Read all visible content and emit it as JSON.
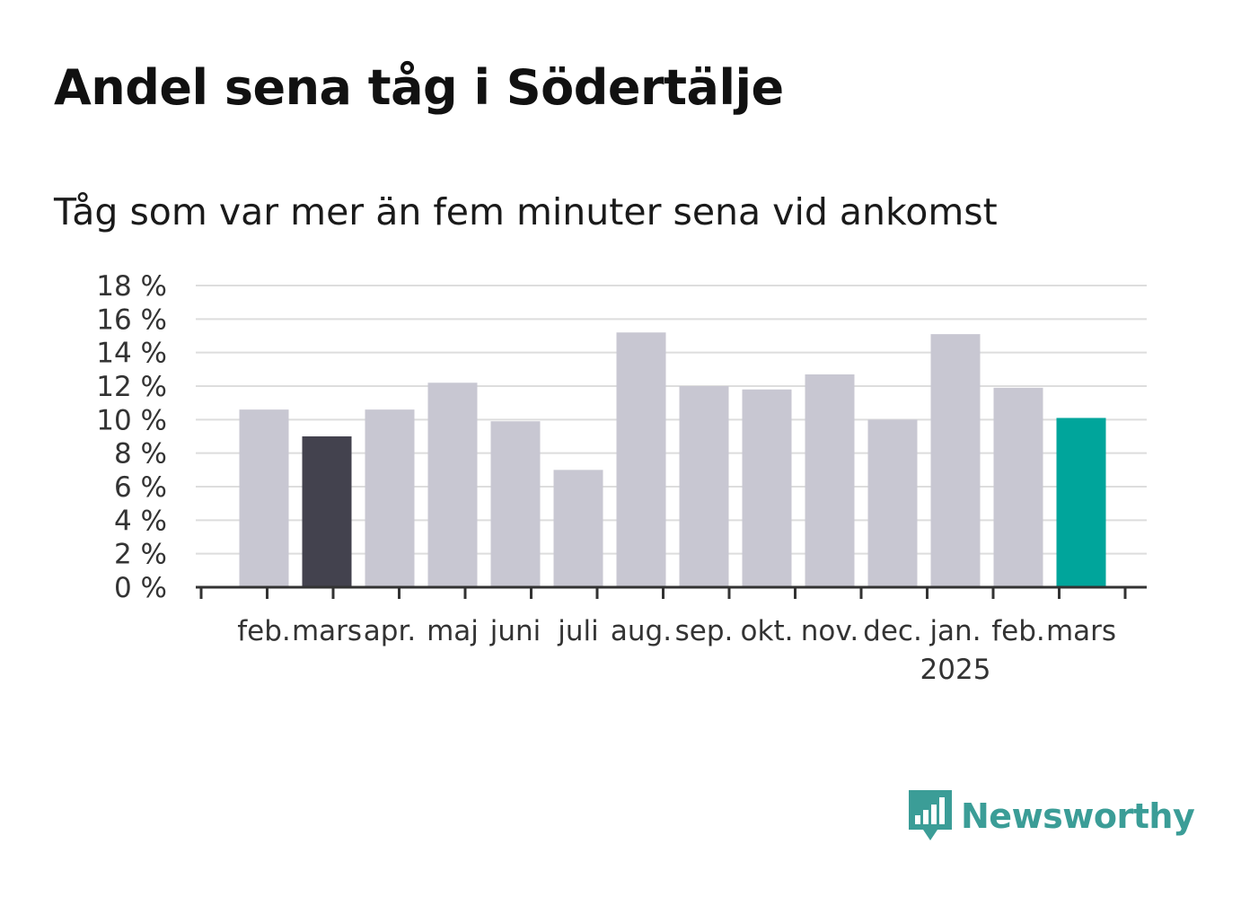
{
  "title": "Andel sena tåg i Södertälje",
  "subtitle": "Tåg som var mer än fem minuter sena vid ankomst",
  "brand": "Newsworthy",
  "colors": {
    "default_bar": "#c8c7d2",
    "previous_year_bar": "#43424e",
    "current_bar": "#00a59b",
    "grid": "#dddddd",
    "axis": "#333333",
    "brand": "#3b9d97"
  },
  "chart_data": {
    "type": "bar",
    "title": "Andel sena tåg i Södertälje",
    "subtitle": "Tåg som var mer än fem minuter sena vid ankomst",
    "categories": [
      "feb.",
      "mars",
      "apr.",
      "maj",
      "juni",
      "juli",
      "aug.",
      "sep.",
      "okt.",
      "nov.",
      "dec.",
      "jan.",
      "feb.",
      "mars"
    ],
    "year_label": {
      "text": "2025",
      "under_category_index": 11
    },
    "values": [
      10.6,
      9.0,
      10.6,
      12.2,
      9.9,
      7.0,
      15.2,
      12.0,
      11.8,
      12.7,
      10.0,
      15.1,
      11.9,
      10.1
    ],
    "highlight": {
      "previous_year_index": 1,
      "current_index": 13
    },
    "yticks": [
      "0 %",
      "2 %",
      "4 %",
      "6 %",
      "8 %",
      "10 %",
      "12 %",
      "14 %",
      "16 %",
      "18 %"
    ],
    "ylim": [
      0,
      18
    ],
    "xlabel": "",
    "ylabel": "",
    "grid": true,
    "legend": "none"
  }
}
